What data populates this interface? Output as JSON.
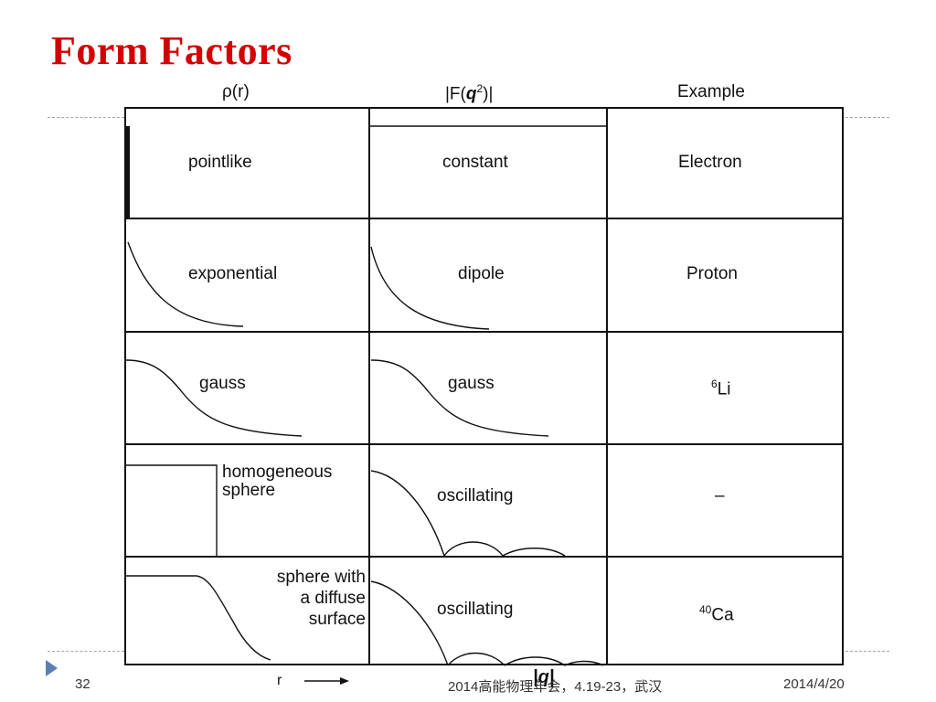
{
  "slide": {
    "title": "Form Factors",
    "page_number": "32",
    "footer_center": "2014高能物理年会，4.19-23，武汉",
    "footer_date": "2014/4/20"
  },
  "table": {
    "headers": {
      "rho": "ρ(r)",
      "formfactor_main": "|F(",
      "formfactor_q": "q",
      "formfactor_sup": "2",
      "formfactor_end": ")|",
      "example": "Example"
    },
    "rows": [
      {
        "rho_label": "pointlike",
        "ff_label": "constant",
        "example": "Electron"
      },
      {
        "rho_label": "exponential",
        "ff_label": "dipole",
        "example": "Proton"
      },
      {
        "rho_label": "gauss",
        "ff_label": "gauss",
        "example_sup": "6",
        "example_base": "Li"
      },
      {
        "rho_label_1": "homogeneous",
        "rho_label_2": "sphere",
        "ff_label": "oscillating",
        "example": "–"
      },
      {
        "rho_label_1": "sphere with",
        "rho_label_2": "a diffuse",
        "rho_label_3": "surface",
        "ff_label": "oscillating",
        "example_sup": "40",
        "example_base": "Ca"
      }
    ],
    "axis_r": "r",
    "axis_q": "|q|"
  },
  "colors": {
    "title": "#d40000",
    "line": "#111111",
    "dash": "#9aa7b8",
    "marker": "#5b7fb5"
  }
}
